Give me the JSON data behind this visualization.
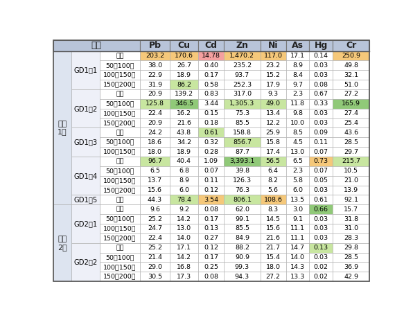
{
  "header_bg": "#b8c4d9",
  "default_bg": "#ffffff",
  "group_bg": "#dde4f0",
  "station_bg": "#eef0f8",
  "highlight_orange": "#f5c87a",
  "highlight_pink": "#f4a0a0",
  "highlight_green": "#90c978",
  "highlight_light_green": "#c8e6a0",
  "col_headers": [
    "Pb",
    "Cu",
    "Cd",
    "Zn",
    "Ni",
    "As",
    "Hg",
    "Cr"
  ],
  "rows": [
    {
      "group": "공단\n1천",
      "station": "GD1－1",
      "layer": "표층",
      "vals": [
        "203.2",
        "170.6",
        "14.78",
        "1,470.2",
        "117.0",
        "17.1",
        "0.14",
        "250.9"
      ],
      "colors": [
        "#f5c87a",
        "#f5c87a",
        "#f4a0a0",
        "#f5c87a",
        "#f5c87a",
        "",
        "",
        "#f5c87a"
      ]
    },
    {
      "group": "",
      "station": "",
      "layer": "50～100㎝",
      "vals": [
        "38.0",
        "26.7",
        "0.40",
        "235.2",
        "23.2",
        "8.9",
        "0.03",
        "49.8"
      ],
      "colors": [
        "",
        "",
        "",
        "",
        "",
        "",
        "",
        ""
      ]
    },
    {
      "group": "",
      "station": "",
      "layer": "100～150㎝",
      "vals": [
        "22.9",
        "18.9",
        "0.17",
        "93.7",
        "15.2",
        "8.4",
        "0.03",
        "32.1"
      ],
      "colors": [
        "",
        "",
        "",
        "",
        "",
        "",
        "",
        ""
      ]
    },
    {
      "group": "",
      "station": "",
      "layer": "150～200㎝",
      "vals": [
        "31.9",
        "86.2",
        "0.58",
        "252.3",
        "17.9",
        "9.7",
        "0.08",
        "51.0"
      ],
      "colors": [
        "",
        "#c8e6a0",
        "",
        "",
        "",
        "",
        "",
        ""
      ]
    },
    {
      "group": "",
      "station": "GD1－2",
      "layer": "표층",
      "vals": [
        "20.9",
        "139.2",
        "0.83",
        "317.0",
        "9.3",
        "2.3",
        "0.67",
        "27.2"
      ],
      "colors": [
        "",
        "",
        "",
        "",
        "",
        "",
        "",
        ""
      ]
    },
    {
      "group": "",
      "station": "",
      "layer": "50～100㎝",
      "vals": [
        "125.8",
        "346.5",
        "3.44",
        "1,305.3",
        "49.0",
        "11.8",
        "0.33",
        "165.9"
      ],
      "colors": [
        "#c8e6a0",
        "#90c978",
        "",
        "#c8e6a0",
        "#c8e6a0",
        "",
        "",
        "#90c978"
      ]
    },
    {
      "group": "",
      "station": "",
      "layer": "100～150㎝",
      "vals": [
        "22.4",
        "16.2",
        "0.15",
        "75.3",
        "13.4",
        "9.8",
        "0.03",
        "27.4"
      ],
      "colors": [
        "",
        "",
        "",
        "",
        "",
        "",
        "",
        ""
      ]
    },
    {
      "group": "",
      "station": "",
      "layer": "150～200㎝",
      "vals": [
        "20.9",
        "21.6",
        "0.18",
        "85.5",
        "12.2",
        "10.0",
        "0.03",
        "25.4"
      ],
      "colors": [
        "",
        "",
        "",
        "",
        "",
        "",
        "",
        ""
      ]
    },
    {
      "group": "",
      "station": "GD1－3",
      "layer": "표층",
      "vals": [
        "24.2",
        "43.8",
        "0.61",
        "158.8",
        "25.9",
        "8.5",
        "0.09",
        "43.6"
      ],
      "colors": [
        "",
        "",
        "#c8e6a0",
        "",
        "",
        "",
        "",
        ""
      ]
    },
    {
      "group": "",
      "station": "",
      "layer": "50～100㎝",
      "vals": [
        "18.6",
        "34.2",
        "0.32",
        "856.7",
        "15.8",
        "4.5",
        "0.11",
        "28.5"
      ],
      "colors": [
        "",
        "",
        "",
        "#c8e6a0",
        "",
        "",
        "",
        ""
      ]
    },
    {
      "group": "",
      "station": "",
      "layer": "100～150㎝",
      "vals": [
        "18.0",
        "18.9",
        "0.28",
        "87.7",
        "17.4",
        "13.0",
        "0.07",
        "29.7"
      ],
      "colors": [
        "",
        "",
        "",
        "",
        "",
        "",
        "",
        ""
      ]
    },
    {
      "group": "",
      "station": "GD1－4",
      "layer": "표층",
      "vals": [
        "96.7",
        "40.4",
        "1.09",
        "3,393.1",
        "56.5",
        "6.5",
        "0.73",
        "215.7"
      ],
      "colors": [
        "#c8e6a0",
        "",
        "",
        "#90c978",
        "#c8e6a0",
        "",
        "#f5c87a",
        "#c8e6a0"
      ]
    },
    {
      "group": "",
      "station": "",
      "layer": "50～100㎝",
      "vals": [
        "6.5",
        "6.8",
        "0.07",
        "39.8",
        "6.4",
        "2.3",
        "0.07",
        "10.5"
      ],
      "colors": [
        "",
        "",
        "",
        "",
        "",
        "",
        "",
        ""
      ]
    },
    {
      "group": "",
      "station": "",
      "layer": "100～150㎝",
      "vals": [
        "13.7",
        "8.9",
        "0.11",
        "126.3",
        "8.2",
        "5.8",
        "0.05",
        "21.0"
      ],
      "colors": [
        "",
        "",
        "",
        "",
        "",
        "",
        "",
        ""
      ]
    },
    {
      "group": "",
      "station": "",
      "layer": "150～200㎝",
      "vals": [
        "15.6",
        "6.0",
        "0.12",
        "76.3",
        "5.6",
        "6.0",
        "0.03",
        "13.9"
      ],
      "colors": [
        "",
        "",
        "",
        "",
        "",
        "",
        "",
        ""
      ]
    },
    {
      "group": "",
      "station": "GD1－5",
      "layer": "표층",
      "vals": [
        "44.3",
        "78.4",
        "3.54",
        "806.1",
        "108.6",
        "13.5",
        "0.61",
        "92.1"
      ],
      "colors": [
        "",
        "#c8e6a0",
        "#f5c87a",
        "#c8e6a0",
        "#f5c87a",
        "",
        "",
        ""
      ]
    },
    {
      "group": "공단\n2천",
      "station": "GD2－1",
      "layer": "표층",
      "vals": [
        "9.6",
        "9.2",
        "0.08",
        "62.0",
        "8.3",
        "3.0",
        "0.66",
        "15.7"
      ],
      "colors": [
        "",
        "",
        "",
        "",
        "",
        "",
        "#90c978",
        ""
      ]
    },
    {
      "group": "",
      "station": "",
      "layer": "50～100㎝",
      "vals": [
        "25.2",
        "14.2",
        "0.17",
        "99.1",
        "14.5",
        "9.1",
        "0.03",
        "31.8"
      ],
      "colors": [
        "",
        "",
        "",
        "",
        "",
        "",
        "",
        ""
      ]
    },
    {
      "group": "",
      "station": "",
      "layer": "100～150㎝",
      "vals": [
        "24.7",
        "13.0",
        "0.13",
        "85.5",
        "15.6",
        "11.1",
        "0.03",
        "31.0"
      ],
      "colors": [
        "",
        "",
        "",
        "",
        "",
        "",
        "",
        ""
      ]
    },
    {
      "group": "",
      "station": "",
      "layer": "150～200㎝",
      "vals": [
        "22.4",
        "14.0",
        "0.27",
        "84.9",
        "21.6",
        "11.1",
        "0.03",
        "28.3"
      ],
      "colors": [
        "",
        "",
        "",
        "",
        "",
        "",
        "",
        ""
      ]
    },
    {
      "group": "",
      "station": "GD2－2",
      "layer": "표층",
      "vals": [
        "25.2",
        "17.1",
        "0.12",
        "88.2",
        "21.7",
        "14.7",
        "0.13",
        "29.8"
      ],
      "colors": [
        "",
        "",
        "",
        "",
        "",
        "",
        "#c8e6a0",
        ""
      ]
    },
    {
      "group": "",
      "station": "",
      "layer": "50～100㎝",
      "vals": [
        "21.4",
        "14.2",
        "0.17",
        "90.9",
        "15.4",
        "14.0",
        "0.03",
        "28.5"
      ],
      "colors": [
        "",
        "",
        "",
        "",
        "",
        "",
        "",
        ""
      ]
    },
    {
      "group": "",
      "station": "",
      "layer": "100～150㎝",
      "vals": [
        "29.0",
        "16.8",
        "0.25",
        "99.3",
        "18.0",
        "14.3",
        "0.02",
        "36.9"
      ],
      "colors": [
        "",
        "",
        "",
        "",
        "",
        "",
        "",
        ""
      ]
    },
    {
      "group": "",
      "station": "",
      "layer": "150～200㎝",
      "vals": [
        "30.5",
        "17.3",
        "0.08",
        "94.3",
        "27.2",
        "13.3",
        "0.02",
        "42.9"
      ],
      "colors": [
        "",
        "",
        "",
        "",
        "",
        "",
        "",
        ""
      ]
    }
  ],
  "group_spans": [
    {
      "label": "공단\n1천",
      "start": 0,
      "end": 15
    },
    {
      "label": "공단\n2천",
      "start": 16,
      "end": 23
    }
  ],
  "station_spans": [
    {
      "label": "GD1－1",
      "start": 0,
      "end": 3
    },
    {
      "label": "GD1－2",
      "start": 4,
      "end": 7
    },
    {
      "label": "GD1－3",
      "start": 8,
      "end": 10
    },
    {
      "label": "GD1－4",
      "start": 11,
      "end": 14
    },
    {
      "label": "GD1－5",
      "start": 15,
      "end": 15
    },
    {
      "label": "GD2－1",
      "start": 16,
      "end": 19
    },
    {
      "label": "GD2－2",
      "start": 20,
      "end": 23
    }
  ]
}
